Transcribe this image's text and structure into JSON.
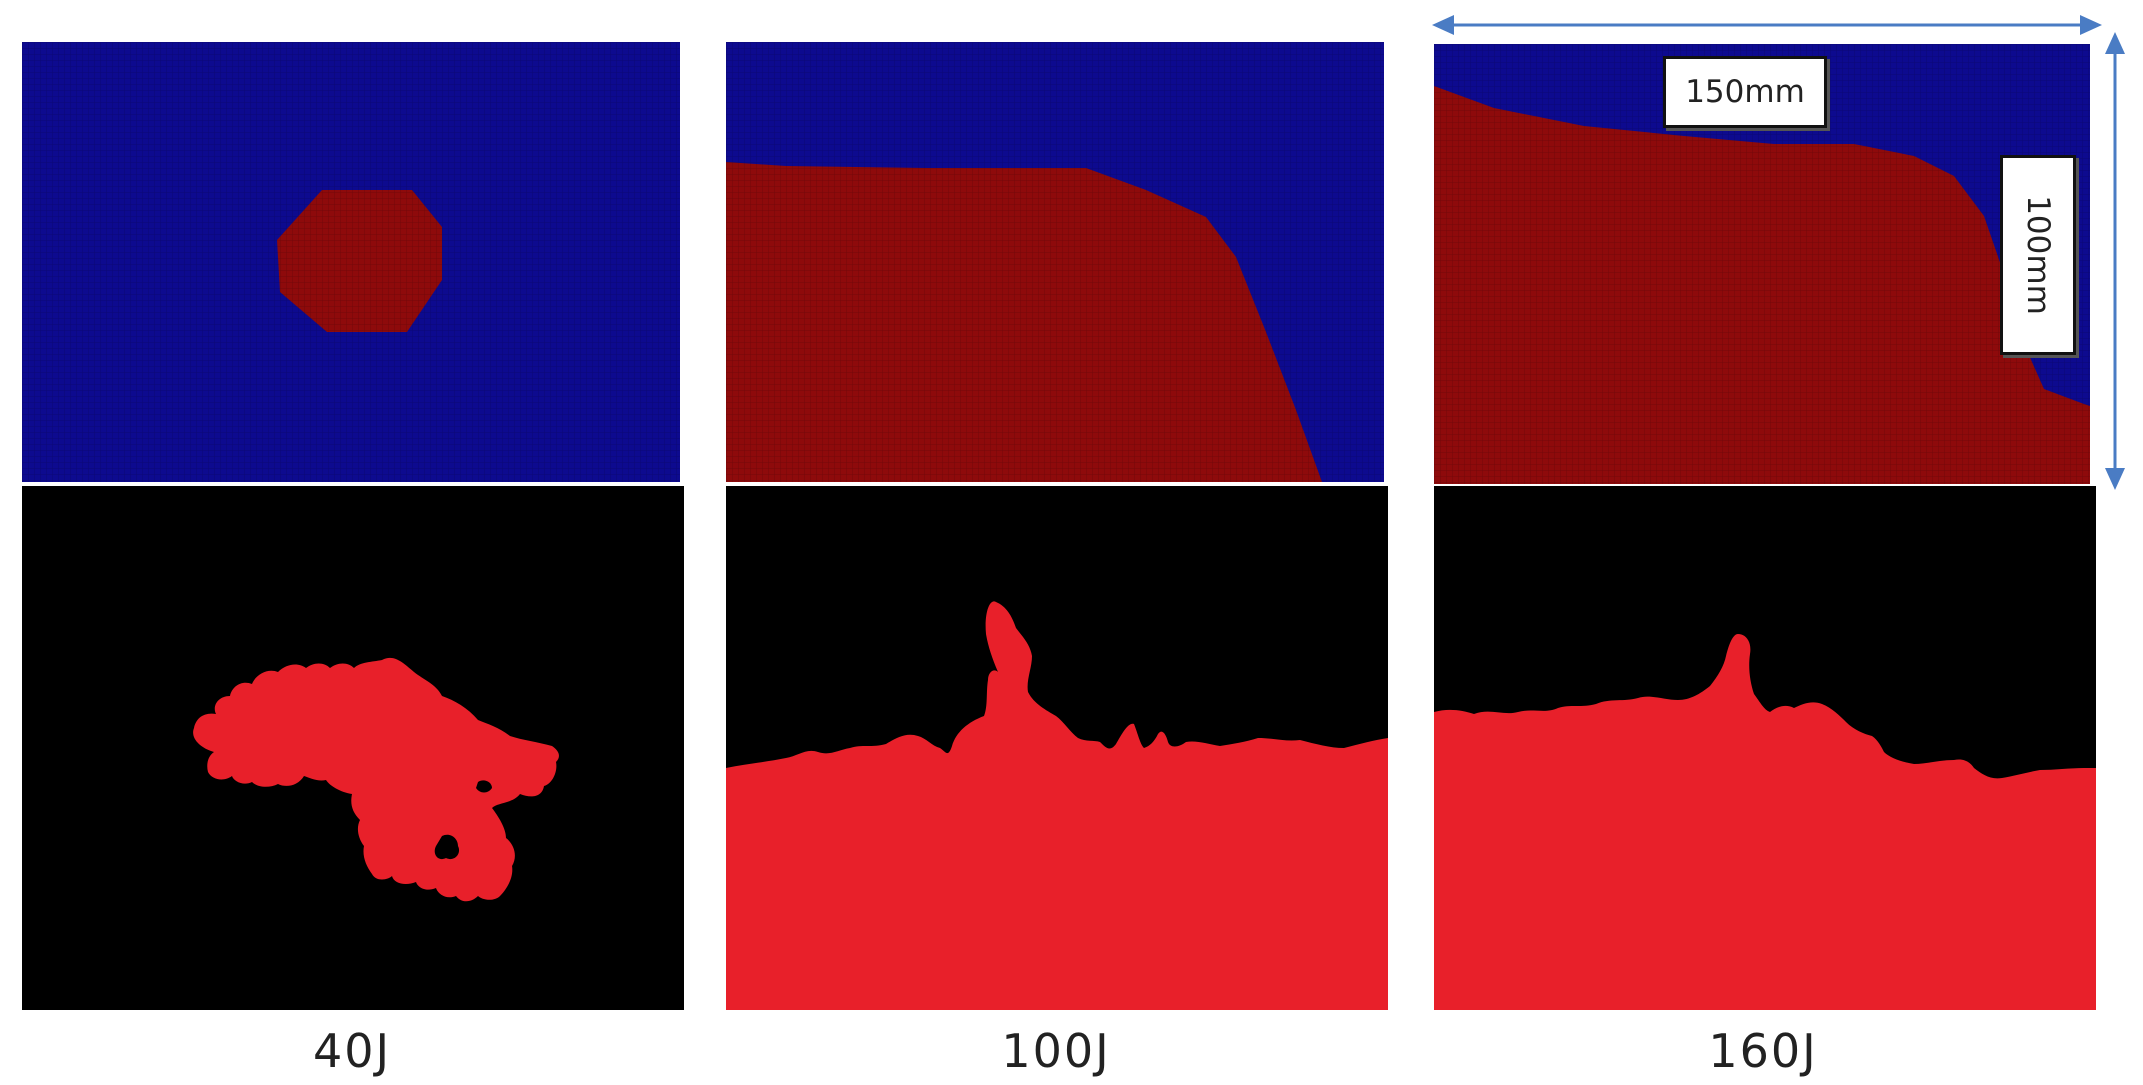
{
  "figure": {
    "columns": [
      {
        "caption": "40J",
        "simulation": {
          "damage_shape": "central-octagon"
        },
        "experiment": {
          "damage_shape": "irregular-central-cluster"
        }
      },
      {
        "caption": "100J",
        "simulation": {
          "damage_shape": "lower-left-region-with-slanted-edge"
        },
        "experiment": {
          "damage_shape": "bottom-band-with-central-spike"
        }
      },
      {
        "caption": "160J",
        "simulation": {
          "damage_shape": "large-region-sloping-boundary"
        },
        "experiment": {
          "damage_shape": "bottom-band-with-small-spike"
        }
      }
    ],
    "dimensions": {
      "width_label": "150mm",
      "height_label": "100mm"
    },
    "colors": {
      "simulation_undamaged": "#0d0a8f",
      "simulation_damaged": "#8e0a0b",
      "experiment_background": "#000000",
      "experiment_damage": "#e8202a",
      "dimension_arrow": "#4a7cc4"
    }
  }
}
